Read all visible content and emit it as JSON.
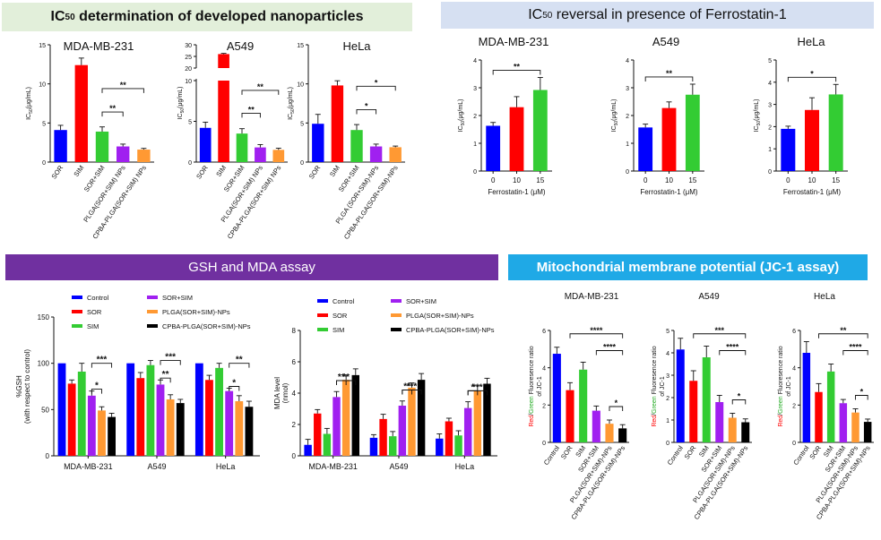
{
  "banners": {
    "ic50": {
      "prefix": "IC",
      "sub": "50",
      "suffix": " determination of developed nanoparticles"
    },
    "reversal": {
      "prefix": "IC",
      "sub": "50",
      "suffix": " reversal in presence of Ferrostatin-1"
    },
    "gsh": "GSH and MDA assay",
    "jc1": "Mitochondrial membrane potential (JC-1 assay)"
  },
  "colors": {
    "blue": "#0000ff",
    "red": "#ff0000",
    "green": "#33cc33",
    "purple": "#a020f0",
    "orange": "#ff9933",
    "black": "#000000"
  },
  "legend": {
    "entries": [
      "Control",
      "SOR",
      "SIM",
      "SOR+SIM",
      "PLGA(SOR+SIM)-NPs",
      "CPBA-PLGA(SOR+SIM)-NPs"
    ],
    "entries_mda": [
      "Control",
      "SOR",
      "SIM",
      "SOR+SIM",
      "PLGA(SOR+SIM)-NPs",
      "CPBA-PLGA(SOR+SIM)-NPs"
    ]
  },
  "chart_data": [
    {
      "type": "bar",
      "panel": "ic50-mda",
      "title": "MDA-MB-231",
      "categories": [
        "SOR",
        "SIM",
        "SOR+SIM",
        "PLGA(SOR+SIM) NPs",
        "CPBA-PLGA(SOR+SIM) NPs"
      ],
      "values": [
        4.1,
        12.4,
        3.9,
        2.0,
        1.6
      ],
      "errors": [
        0.6,
        0.9,
        0.6,
        0.3,
        0.15
      ],
      "ylabel_prefix": "IC",
      "ylabel_sub": "50",
      "ylabel_suffix": "(μg/mL)",
      "ylim": [
        0,
        15
      ],
      "yticks": [
        "0",
        "5",
        "10",
        "15"
      ],
      "annotations": [
        "**",
        "**"
      ]
    },
    {
      "type": "bar",
      "panel": "ic50-a549",
      "title": "A549",
      "broken_axis": true,
      "categories": [
        "SOR",
        "SIM",
        "SOR+SIM",
        "PLGA(SOR+SIM) NPs",
        "CPBA-PLGA(SOR+SIM) NPs"
      ],
      "values": [
        4.2,
        26.0,
        3.5,
        1.8,
        1.5
      ],
      "errors": [
        0.7,
        0.3,
        0.6,
        0.35,
        0.2
      ],
      "ylabel_prefix": "IC",
      "ylabel_sub": "50",
      "ylabel_suffix": "(μg/mL)",
      "ylim": [
        0,
        30
      ],
      "yticks": [
        "0",
        "5",
        "10",
        "20",
        "25",
        "30"
      ],
      "annotations": [
        "**",
        "**"
      ]
    },
    {
      "type": "bar",
      "panel": "ic50-hela",
      "title": "HeLa",
      "categories": [
        "SOR",
        "SIM",
        "SOR+SIM",
        "PLGA (SOR+SIM)-NPs",
        "CPBA-PLGA(SOR+SIM)-NPs"
      ],
      "values": [
        4.9,
        9.8,
        4.1,
        2.0,
        1.9
      ],
      "errors": [
        1.2,
        0.6,
        0.7,
        0.3,
        0.15
      ],
      "ylabel_prefix": "IC",
      "ylabel_sub": "50",
      "ylabel_suffix": "(μg/mL)",
      "ylim": [
        0,
        15
      ],
      "yticks": [
        "0",
        "5",
        "10",
        "15"
      ],
      "annotations": [
        "*",
        "*"
      ]
    },
    {
      "type": "bar",
      "panel": "ferr-mda",
      "title": "MDA-MB-231",
      "categories": [
        "0",
        "10",
        "15"
      ],
      "values": [
        1.63,
        2.3,
        2.92
      ],
      "errors": [
        0.12,
        0.38,
        0.45
      ],
      "xlabel": "Ferrostatin-1 (μM)",
      "ylabel_prefix": "IC",
      "ylabel_sub": "50",
      "ylabel_suffix": "(μg/mL)",
      "ylim": [
        0,
        4
      ],
      "yticks": [
        "0",
        "1",
        "2",
        "3",
        "4"
      ],
      "annotations": [
        "**"
      ]
    },
    {
      "type": "bar",
      "panel": "ferr-a549",
      "title": "A549",
      "categories": [
        "0",
        "10",
        "15"
      ],
      "values": [
        1.57,
        2.27,
        2.75
      ],
      "errors": [
        0.12,
        0.22,
        0.38
      ],
      "xlabel": "Ferrostatin-1 (μM)",
      "ylabel_prefix": "IC",
      "ylabel_sub": "50",
      "ylabel_suffix": "(μg/mL)",
      "ylim": [
        0,
        4
      ],
      "yticks": [
        "0",
        "1",
        "2",
        "3",
        "4"
      ],
      "annotations": [
        "**"
      ]
    },
    {
      "type": "bar",
      "panel": "ferr-hela",
      "title": "HeLa",
      "categories": [
        "0",
        "10",
        "15"
      ],
      "values": [
        1.9,
        2.75,
        3.45
      ],
      "errors": [
        0.12,
        0.55,
        0.45
      ],
      "xlabel": "Ferrostatin-1 (μM)",
      "ylabel_prefix": "IC",
      "ylabel_sub": "50",
      "ylabel_suffix": "(μg/mL)",
      "ylim": [
        0,
        5
      ],
      "yticks": [
        "0",
        "1",
        "2",
        "3",
        "4",
        "5"
      ],
      "annotations": [
        "*"
      ]
    },
    {
      "type": "bar",
      "panel": "gsh",
      "categories": [
        "MDA-MB-231",
        "A549",
        "HeLa"
      ],
      "series": [
        {
          "name": "Control",
          "values": [
            100,
            100,
            100
          ],
          "errors": [
            0,
            0,
            0
          ]
        },
        {
          "name": "SOR",
          "values": [
            78,
            84,
            82
          ],
          "errors": [
            4,
            6,
            5
          ]
        },
        {
          "name": "SIM",
          "values": [
            91,
            98,
            95
          ],
          "errors": [
            9,
            5,
            5
          ]
        },
        {
          "name": "SOR+SIM",
          "values": [
            65,
            77,
            70
          ],
          "errors": [
            5,
            5,
            3
          ]
        },
        {
          "name": "PLGA(SOR+SIM)-NPs",
          "values": [
            49,
            61,
            59
          ],
          "errors": [
            4,
            5,
            6
          ]
        },
        {
          "name": "CPBA-PLGA(SOR+SIM)-NPs",
          "values": [
            42,
            57,
            53
          ],
          "errors": [
            4,
            4,
            6
          ]
        }
      ],
      "ylabel_lines": [
        "%GSH",
        "(with respect to control)"
      ],
      "ylim": [
        0,
        150
      ],
      "yticks": [
        "0",
        "50",
        "100",
        "150"
      ],
      "annotations": [
        [
          "*",
          "***"
        ],
        [
          "**",
          "***"
        ],
        [
          "*",
          "**"
        ]
      ]
    },
    {
      "type": "bar",
      "panel": "mda",
      "categories": [
        "MDA-MB-231",
        "A549",
        "HeLa"
      ],
      "series": [
        {
          "name": "Control",
          "values": [
            0.7,
            1.15,
            1.1
          ],
          "errors": [
            0.35,
            0.2,
            0.3
          ]
        },
        {
          "name": "SOR",
          "values": [
            2.7,
            2.35,
            2.2
          ],
          "errors": [
            0.25,
            0.3,
            0.2
          ]
        },
        {
          "name": "SIM",
          "values": [
            1.4,
            1.25,
            1.3
          ],
          "errors": [
            0.35,
            0.3,
            0.3
          ]
        },
        {
          "name": "SOR+SIM",
          "values": [
            3.75,
            3.2,
            3.05
          ],
          "errors": [
            0.35,
            0.3,
            0.4
          ]
        },
        {
          "name": "PLGA(SOR+SIM)-NPs",
          "values": [
            4.85,
            4.35,
            4.15
          ],
          "errors": [
            0.3,
            0.3,
            0.35
          ]
        },
        {
          "name": "CPBA-PLGA(SOR+SIM)-NPs",
          "values": [
            5.15,
            4.85,
            4.6
          ],
          "errors": [
            0.4,
            0.4,
            0.35
          ]
        }
      ],
      "ylabel_lines": [
        "MDA level",
        "(nmol)"
      ],
      "ylim": [
        0,
        8
      ],
      "yticks": [
        "0",
        "2",
        "4",
        "6",
        "8"
      ],
      "annotations": [
        [
          "**",
          "**"
        ],
        [
          "**",
          "***"
        ],
        [
          "*",
          "***"
        ]
      ]
    },
    {
      "type": "bar",
      "panel": "jc1-mda",
      "title": "MDA-MB-231",
      "categories": [
        "Control",
        "SOR",
        "SIM",
        "SOR+SIM",
        "PLGA(SOR+SIM)-NPs",
        "CPBA-PLGA(SOR+SIM)-NPs"
      ],
      "values": [
        4.75,
        2.8,
        3.9,
        1.7,
        1.0,
        0.75
      ],
      "errors": [
        0.35,
        0.4,
        0.4,
        0.25,
        0.2,
        0.2
      ],
      "ylabel_red": "Red",
      "ylabel_slash": "/",
      "ylabel_green": "Green",
      "ylabel_rest": " Fluoresence ratio",
      "ylabel_line2": "of JC-1",
      "ylim": [
        0,
        6
      ],
      "yticks": [
        "0",
        "2",
        "4",
        "6"
      ],
      "annotations": [
        "****",
        "****",
        "*"
      ]
    },
    {
      "type": "bar",
      "panel": "jc1-a549",
      "title": "A549",
      "categories": [
        "Control",
        "SOR",
        "SIM",
        "SOR+SIM",
        "PLGA(SOR+SIM)-NPs",
        "CPBA-PLGA(SOR+SIM)-NPs"
      ],
      "values": [
        4.15,
        2.75,
        3.8,
        1.8,
        1.1,
        0.9
      ],
      "errors": [
        0.5,
        0.45,
        0.5,
        0.3,
        0.2,
        0.15
      ],
      "ylabel_red": "Red",
      "ylabel_slash": "/",
      "ylabel_green": "Green",
      "ylabel_rest": " Fluoresence ratio",
      "ylabel_line2": "of JC-1",
      "ylim": [
        0,
        5
      ],
      "yticks": [
        "0",
        "1",
        "2",
        "3",
        "4",
        "5"
      ],
      "annotations": [
        "***",
        "****",
        "*"
      ]
    },
    {
      "type": "bar",
      "panel": "jc1-hela",
      "title": "HeLa",
      "categories": [
        "Control",
        "SOR",
        "SIM",
        "SOR+SIM",
        "PLGA(SOR+SIM)-NPs",
        "CPBA-PLGA(SOR+SIM)-NPs"
      ],
      "values": [
        4.8,
        2.7,
        3.8,
        2.1,
        1.6,
        1.1
      ],
      "errors": [
        0.6,
        0.45,
        0.4,
        0.2,
        0.2,
        0.15
      ],
      "ylabel_red": "Red",
      "ylabel_slash": "/",
      "ylabel_green": "Green",
      "ylabel_rest": " Fluoresence ratio",
      "ylabel_line2": "of JC-1",
      "ylim": [
        0,
        6
      ],
      "yticks": [
        "0",
        "2",
        "4",
        "6"
      ],
      "annotations": [
        "**",
        "****",
        "*"
      ]
    }
  ]
}
